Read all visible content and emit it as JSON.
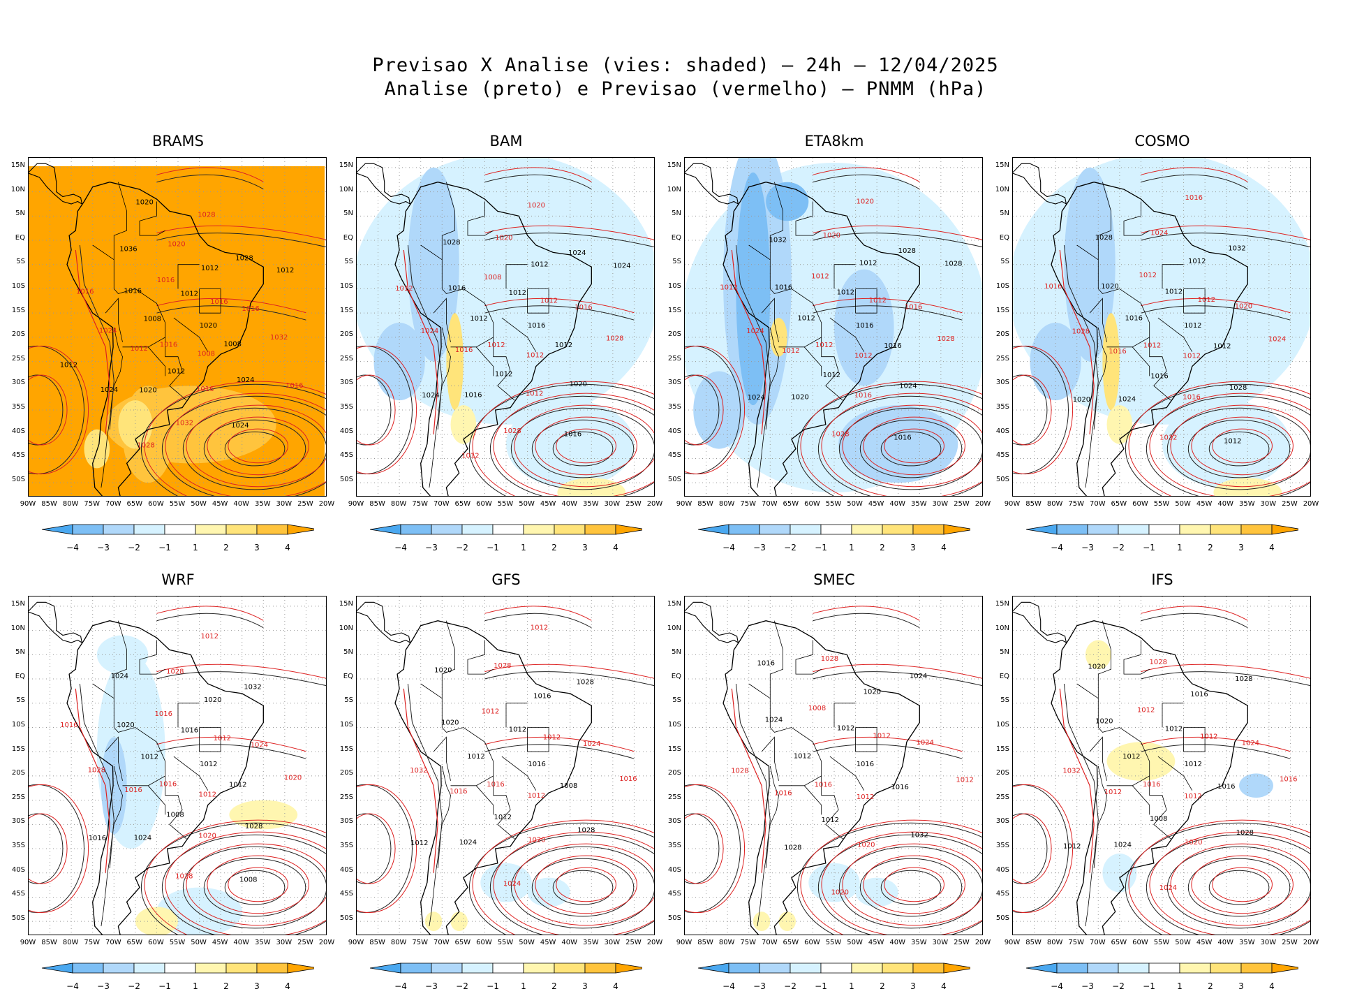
{
  "header": {
    "line1": "Previsao X Analise (vies: shaded) — 24h — 12/04/2025",
    "line2": "Analise (preto) e Previsao (vermelho) — PNMM (hPa)"
  },
  "colorbar": {
    "labels": [
      "−4",
      "−3",
      "−2",
      "−1",
      "1",
      "2",
      "3",
      "4"
    ],
    "colors": [
      "#4aa8f0",
      "#7dbff5",
      "#b0d8fa",
      "#d6f2ff",
      "#ffffff",
      "#fff6b0",
      "#ffe47a",
      "#ffc43d",
      "#ffa500"
    ]
  },
  "axes": {
    "lat_labels": [
      "15N",
      "10N",
      "5N",
      "EQ",
      "5S",
      "10S",
      "15S",
      "20S",
      "25S",
      "30S",
      "35S",
      "40S",
      "45S",
      "50S"
    ],
    "lon_labels": [
      "90W",
      "85W",
      "80W",
      "75W",
      "70W",
      "65W",
      "60W",
      "55W",
      "50W",
      "45W",
      "40W",
      "35W",
      "30W",
      "25W",
      "20W"
    ]
  },
  "panels": [
    {
      "name": "BRAMS",
      "bias": "pos_strong",
      "contour_labels": [
        "1020",
        "1016",
        "1012",
        "1008",
        "1008",
        "1016",
        "1012",
        "1016",
        "1008",
        "1012",
        "1012",
        "1016",
        "1016",
        "1016",
        "1020",
        "1020",
        "1024",
        "1024",
        "1028",
        "1032",
        "1036",
        "1032",
        "1024",
        "1028",
        "1024",
        "1016",
        "1012",
        "1028",
        "1020",
        "1016",
        "1012"
      ]
    },
    {
      "name": "BAM",
      "bias": "neg_light",
      "contour_labels": [
        "1016",
        "1012",
        "1012",
        "1012",
        "1012",
        "1012",
        "1012",
        "1008",
        "1012",
        "1016",
        "1012",
        "1012",
        "1016",
        "1016",
        "1016",
        "1020",
        "1020",
        "1024",
        "1024",
        "1028",
        "1028",
        "1028",
        "1024",
        "1020",
        "1016",
        "1012",
        "1024",
        "1012"
      ]
    },
    {
      "name": "ETA8km",
      "bias": "neg_strong",
      "contour_labels": [
        "1016",
        "1012",
        "1012",
        "1012",
        "1012",
        "1012",
        "1012",
        "1012",
        "1016",
        "1012",
        "1012",
        "1016",
        "1016",
        "1016",
        "1020",
        "1020",
        "1024",
        "1024",
        "1028",
        "1028",
        "1032",
        "1028",
        "1024",
        "1020",
        "1016",
        "1012",
        "1028"
      ]
    },
    {
      "name": "COSMO",
      "bias": "neg_light",
      "contour_labels": [
        "1012",
        "1012",
        "1012",
        "1012",
        "1016",
        "1012",
        "1016",
        "1012",
        "1012",
        "1016",
        "1012",
        "1016",
        "1020",
        "1020",
        "1024",
        "1024",
        "1028",
        "1028",
        "1032",
        "1032",
        "1028",
        "1024",
        "1020",
        "1016",
        "1012",
        "1016"
      ]
    },
    {
      "name": "WRF",
      "bias": "mixed",
      "contour_labels": [
        "1012",
        "1016",
        "1016",
        "1012",
        "1012",
        "1012",
        "1008",
        "1016",
        "1012",
        "1016",
        "1020",
        "1020",
        "1020",
        "1024",
        "1024",
        "1028",
        "1028",
        "1028",
        "1032",
        "1028",
        "1024",
        "1020",
        "1016",
        "1012",
        "1008",
        "1016"
      ]
    },
    {
      "name": "GFS",
      "bias": "near_zero",
      "contour_labels": [
        "1016",
        "1016",
        "1012",
        "1012",
        "1012",
        "1012",
        "1012",
        "1012",
        "1008",
        "1016",
        "1016",
        "1020",
        "1020",
        "1024",
        "1024",
        "1028",
        "1028",
        "1032",
        "1028",
        "1024",
        "1020",
        "1016",
        "1012",
        "1012"
      ]
    },
    {
      "name": "SMEC",
      "bias": "near_zero",
      "contour_labels": [
        "1016",
        "1016",
        "1012",
        "1012",
        "1012",
        "1012",
        "1012",
        "1008",
        "1016",
        "1016",
        "1020",
        "1020",
        "1024",
        "1024",
        "1028",
        "1028",
        "1032",
        "1028",
        "1024",
        "1020",
        "1016",
        "1012"
      ]
    },
    {
      "name": "IFS",
      "bias": "pos_light",
      "contour_labels": [
        "1012",
        "1016",
        "1012",
        "1012",
        "1012",
        "1012",
        "1008",
        "1012",
        "1016",
        "1012",
        "1016",
        "1020",
        "1020",
        "1024",
        "1024",
        "1028",
        "1028",
        "1032",
        "1028",
        "1024",
        "1020",
        "1016",
        "1012"
      ]
    }
  ]
}
